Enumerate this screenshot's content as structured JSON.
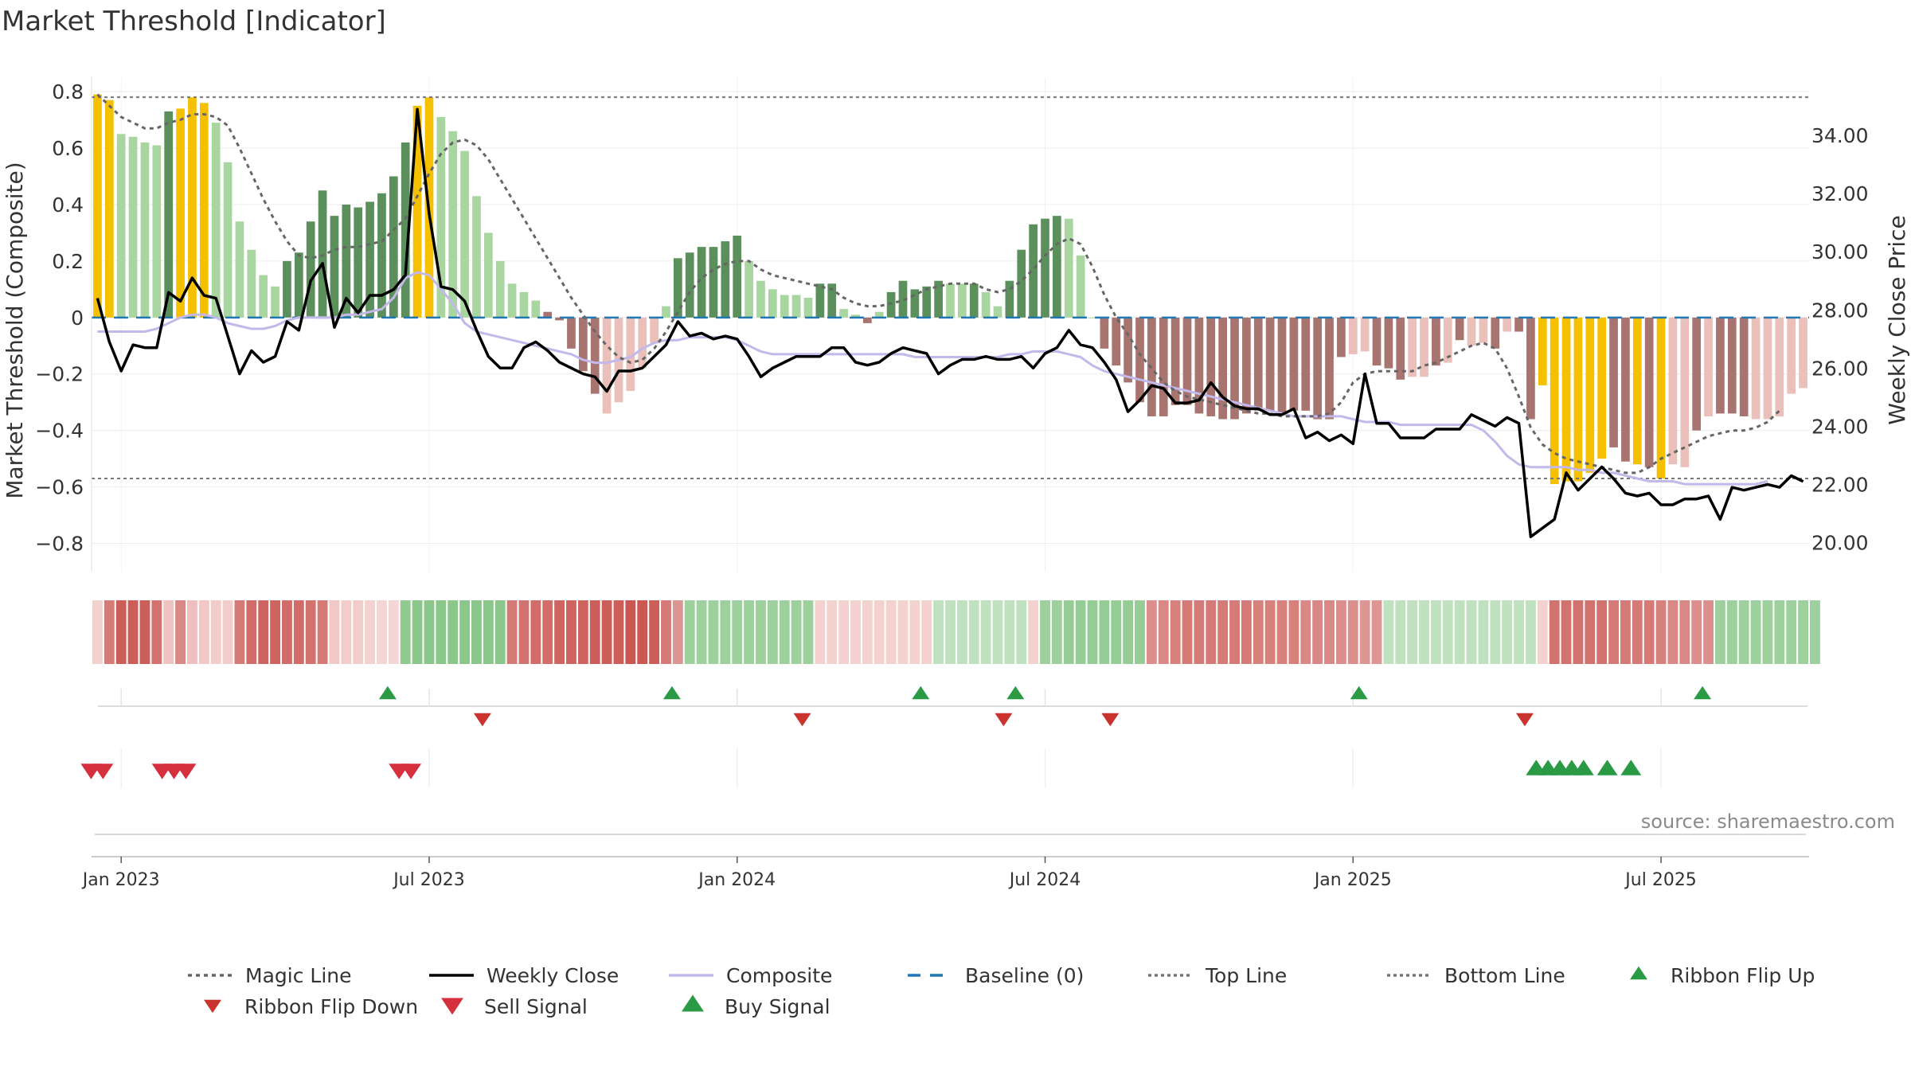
{
  "title": "Market Threshold [Indicator]",
  "source_note": "source: sharemaestro.com",
  "colors": {
    "strong_pos": "#5b8f5b",
    "weak_pos": "#a9d6a0",
    "extreme": "#f5c000",
    "strong_neg": "#a87470",
    "weak_neg": "#ebbfba",
    "magic": "#666666",
    "close": "#000000",
    "composite": "#c3b8ea",
    "baseline": "#1f77b4",
    "threshold": "#777777",
    "buy": "#2a9a45",
    "sell": "#d62f3e"
  },
  "chart_data": {
    "type": "bar",
    "title": "Market Threshold [Indicator]",
    "ylabel": "Market Threshold (Composite)",
    "y2label": "Weekly Close Price",
    "ylim": [
      -0.9,
      0.82
    ],
    "y2lim": [
      19.0,
      35.7
    ],
    "yticks": [
      {
        "v": 0.8,
        "t": "0.8"
      },
      {
        "v": 0.6,
        "t": "0.6"
      },
      {
        "v": 0.4,
        "t": "0.4"
      },
      {
        "v": 0.2,
        "t": "0.2"
      },
      {
        "v": 0,
        "t": "0"
      },
      {
        "v": -0.2,
        "t": "−0.2"
      },
      {
        "v": -0.4,
        "t": "−0.4"
      },
      {
        "v": -0.6,
        "t": "−0.6"
      },
      {
        "v": -0.8,
        "t": "−0.8"
      }
    ],
    "y2ticks": [
      {
        "v": 34,
        "t": "34.00"
      },
      {
        "v": 32,
        "t": "32.00"
      },
      {
        "v": 30,
        "t": "30.00"
      },
      {
        "v": 28,
        "t": "28.00"
      },
      {
        "v": 26,
        "t": "26.00"
      },
      {
        "v": 24,
        "t": "24.00"
      },
      {
        "v": 22,
        "t": "22.00"
      },
      {
        "v": 20,
        "t": "20.00"
      }
    ],
    "xticks": [
      {
        "w": 2.5,
        "t": "Jan 2023"
      },
      {
        "w": 28.5,
        "t": "Jul 2023"
      },
      {
        "w": 54.5,
        "t": "Jan 2024"
      },
      {
        "w": 80.5,
        "t": "Jul 2024"
      },
      {
        "w": 106.5,
        "t": "Jan 2025"
      },
      {
        "w": 132.5,
        "t": "Jul 2025"
      }
    ],
    "top_line": 0.78,
    "bottom_line": -0.57,
    "baseline": 0,
    "composite_bars": [
      0.79,
      0.77,
      0.65,
      0.64,
      0.62,
      0.61,
      0.73,
      0.74,
      0.78,
      0.76,
      0.69,
      0.55,
      0.34,
      0.24,
      0.15,
      0.11,
      0.2,
      0.23,
      0.34,
      0.45,
      0.36,
      0.4,
      0.39,
      0.41,
      0.44,
      0.5,
      0.62,
      0.75,
      0.78,
      0.71,
      0.66,
      0.59,
      0.43,
      0.3,
      0.2,
      0.12,
      0.09,
      0.06,
      0.02,
      -0.01,
      -0.11,
      -0.19,
      -0.27,
      -0.34,
      -0.3,
      -0.26,
      -0.18,
      -0.09,
      0.04,
      0.21,
      0.23,
      0.25,
      0.25,
      0.27,
      0.29,
      0.2,
      0.13,
      0.1,
      0.08,
      0.08,
      0.07,
      0.12,
      0.12,
      0.03,
      0.01,
      -0.02,
      0.02,
      0.09,
      0.13,
      0.1,
      0.11,
      0.13,
      0.12,
      0.12,
      0.12,
      0.09,
      0.04,
      0.13,
      0.24,
      0.33,
      0.35,
      0.36,
      0.35,
      0.22,
      0.0,
      -0.11,
      -0.17,
      -0.23,
      -0.3,
      -0.35,
      -0.35,
      -0.31,
      -0.31,
      -0.34,
      -0.35,
      -0.36,
      -0.36,
      -0.34,
      -0.33,
      -0.33,
      -0.34,
      -0.33,
      -0.33,
      -0.36,
      -0.36,
      -0.14,
      -0.13,
      -0.12,
      -0.17,
      -0.18,
      -0.22,
      -0.21,
      -0.21,
      -0.17,
      -0.16,
      -0.08,
      -0.1,
      -0.09,
      -0.11,
      -0.05,
      -0.05,
      -0.36,
      -0.24,
      -0.59,
      -0.58,
      -0.58,
      -0.55,
      -0.5,
      -0.46,
      -0.51,
      -0.52,
      -0.53,
      -0.57,
      -0.52,
      -0.53,
      -0.4,
      -0.35,
      -0.34,
      -0.34,
      -0.35,
      -0.36,
      -0.36,
      -0.35,
      -0.27,
      -0.25
    ],
    "bar_colors": [
      "Y",
      "Y",
      "WP",
      "WP",
      "WP",
      "WP",
      "SP",
      "Y",
      "Y",
      "Y",
      "WP",
      "WP",
      "WP",
      "WP",
      "WP",
      "WP",
      "SP",
      "SP",
      "SP",
      "SP",
      "SP",
      "SP",
      "SP",
      "SP",
      "SP",
      "SP",
      "SP",
      "Y",
      "Y",
      "WP",
      "WP",
      "WP",
      "WP",
      "WP",
      "WP",
      "WP",
      "WP",
      "WP",
      "SN",
      "SN",
      "SN",
      "SN",
      "SN",
      "WN",
      "WN",
      "WN",
      "WN",
      "WN",
      "WP",
      "SP",
      "SP",
      "SP",
      "SP",
      "SP",
      "SP",
      "WP",
      "WP",
      "WP",
      "WP",
      "WP",
      "WP",
      "SP",
      "SP",
      "WP",
      "WP",
      "SN",
      "WP",
      "SP",
      "SP",
      "SP",
      "SP",
      "SP",
      "WP",
      "WP",
      "SP",
      "WP",
      "WP",
      "SP",
      "SP",
      "SP",
      "SP",
      "SP",
      "WP",
      "WP",
      "WP",
      "SN",
      "SN",
      "SN",
      "SN",
      "SN",
      "SN",
      "SN",
      "SN",
      "SN",
      "SN",
      "SN",
      "SN",
      "SN",
      "SN",
      "SN",
      "SN",
      "SN",
      "SN",
      "SN",
      "SN",
      "SN",
      "WN",
      "WN",
      "SN",
      "SN",
      "SN",
      "WN",
      "WN",
      "SN",
      "WN",
      "SN",
      "WN",
      "WN",
      "SN",
      "WN",
      "SN",
      "SN",
      "Y",
      "Y",
      "Y",
      "Y",
      "Y",
      "Y",
      "SN",
      "SN",
      "Y",
      "SN",
      "Y",
      "WN",
      "WN",
      "SN",
      "WN",
      "SN",
      "SN",
      "SN",
      "WN",
      "WN",
      "WN",
      "WN",
      "WN",
      "WN"
    ],
    "series": [
      {
        "name": "Magic Line",
        "axis": "left",
        "values": [
          0.79,
          0.75,
          0.71,
          0.69,
          0.67,
          0.67,
          0.69,
          0.7,
          0.72,
          0.72,
          0.71,
          0.68,
          0.6,
          0.51,
          0.42,
          0.34,
          0.27,
          0.22,
          0.21,
          0.22,
          0.24,
          0.25,
          0.25,
          0.26,
          0.27,
          0.31,
          0.35,
          0.43,
          0.51,
          0.58,
          0.62,
          0.63,
          0.61,
          0.56,
          0.49,
          0.42,
          0.35,
          0.28,
          0.21,
          0.14,
          0.07,
          0.01,
          -0.05,
          -0.1,
          -0.14,
          -0.16,
          -0.15,
          -0.11,
          -0.05,
          0.02,
          0.09,
          0.14,
          0.17,
          0.19,
          0.2,
          0.2,
          0.17,
          0.15,
          0.14,
          0.13,
          0.12,
          0.11,
          0.1,
          0.07,
          0.05,
          0.04,
          0.04,
          0.05,
          0.06,
          0.08,
          0.1,
          0.11,
          0.12,
          0.12,
          0.12,
          0.1,
          0.09,
          0.1,
          0.13,
          0.17,
          0.22,
          0.26,
          0.28,
          0.26,
          0.18,
          0.08,
          0.0,
          -0.06,
          -0.13,
          -0.18,
          -0.23,
          -0.26,
          -0.28,
          -0.29,
          -0.3,
          -0.31,
          -0.32,
          -0.33,
          -0.34,
          -0.34,
          -0.35,
          -0.35,
          -0.35,
          -0.35,
          -0.34,
          -0.3,
          -0.23,
          -0.2,
          -0.19,
          -0.19,
          -0.19,
          -0.19,
          -0.17,
          -0.16,
          -0.14,
          -0.12,
          -0.1,
          -0.09,
          -0.11,
          -0.18,
          -0.28,
          -0.39,
          -0.45,
          -0.48,
          -0.5,
          -0.51,
          -0.52,
          -0.53,
          -0.54,
          -0.55,
          -0.55,
          -0.53,
          -0.5,
          -0.48,
          -0.46,
          -0.44,
          -0.42,
          -0.41,
          -0.4,
          -0.4,
          -0.39,
          -0.37,
          -0.33
        ]
      },
      {
        "name": "Weekly Close",
        "axis": "right",
        "values": [
          28.4,
          26.9,
          25.9,
          26.8,
          26.7,
          26.7,
          28.6,
          28.3,
          29.1,
          28.5,
          28.4,
          27.1,
          25.8,
          26.6,
          26.2,
          26.4,
          27.6,
          27.3,
          29.0,
          29.6,
          27.4,
          28.4,
          27.9,
          28.5,
          28.5,
          28.7,
          29.2,
          34.9,
          31.3,
          28.8,
          28.7,
          28.3,
          27.3,
          26.4,
          26.0,
          26.0,
          26.7,
          26.9,
          26.6,
          26.2,
          26.0,
          25.8,
          25.7,
          25.2,
          25.9,
          25.9,
          26.0,
          26.4,
          26.8,
          27.6,
          27.1,
          27.2,
          27.0,
          27.1,
          27.0,
          26.4,
          25.7,
          26.0,
          26.2,
          26.4,
          26.4,
          26.4,
          26.7,
          26.7,
          26.2,
          26.1,
          26.2,
          26.5,
          26.7,
          26.6,
          26.5,
          25.8,
          26.1,
          26.3,
          26.3,
          26.4,
          26.3,
          26.3,
          26.4,
          26.0,
          26.5,
          26.7,
          27.3,
          26.8,
          26.7,
          26.2,
          25.6,
          24.5,
          24.9,
          25.4,
          25.3,
          24.8,
          24.8,
          24.9,
          25.5,
          25.0,
          24.7,
          24.6,
          24.6,
          24.4,
          24.4,
          24.6,
          23.6,
          23.8,
          23.5,
          23.7,
          23.4,
          25.8,
          24.1,
          24.1,
          23.6,
          23.6,
          23.6,
          23.9,
          23.9,
          23.9,
          24.4,
          24.2,
          24.0,
          24.3,
          24.1,
          20.2,
          20.5,
          20.8,
          22.4,
          21.8,
          22.2,
          22.6,
          22.2,
          21.7,
          21.6,
          21.7,
          21.3,
          21.3,
          21.5,
          21.5,
          21.6,
          20.8,
          21.9,
          21.8,
          21.9,
          22.0,
          21.9,
          22.3,
          22.1
        ]
      },
      {
        "name": "Composite",
        "axis": "left",
        "values": [
          -0.05,
          -0.05,
          -0.05,
          -0.05,
          -0.05,
          -0.04,
          -0.02,
          0.0,
          0.01,
          0.01,
          0.0,
          -0.02,
          -0.03,
          -0.04,
          -0.04,
          -0.03,
          -0.01,
          0.0,
          0.0,
          0.0,
          0.0,
          0.01,
          0.01,
          0.02,
          0.03,
          0.07,
          0.14,
          0.16,
          0.15,
          0.1,
          0.05,
          -0.02,
          -0.05,
          -0.06,
          -0.07,
          -0.08,
          -0.09,
          -0.1,
          -0.11,
          -0.12,
          -0.13,
          -0.15,
          -0.16,
          -0.16,
          -0.15,
          -0.14,
          -0.11,
          -0.09,
          -0.08,
          -0.08,
          -0.07,
          -0.07,
          -0.07,
          -0.07,
          -0.08,
          -0.1,
          -0.12,
          -0.13,
          -0.13,
          -0.13,
          -0.13,
          -0.13,
          -0.13,
          -0.13,
          -0.13,
          -0.13,
          -0.13,
          -0.13,
          -0.13,
          -0.14,
          -0.14,
          -0.14,
          -0.14,
          -0.14,
          -0.14,
          -0.14,
          -0.14,
          -0.13,
          -0.13,
          -0.12,
          -0.12,
          -0.12,
          -0.13,
          -0.14,
          -0.17,
          -0.19,
          -0.2,
          -0.21,
          -0.22,
          -0.23,
          -0.24,
          -0.25,
          -0.26,
          -0.27,
          -0.28,
          -0.29,
          -0.3,
          -0.31,
          -0.32,
          -0.33,
          -0.34,
          -0.35,
          -0.35,
          -0.35,
          -0.35,
          -0.35,
          -0.36,
          -0.37,
          -0.37,
          -0.37,
          -0.38,
          -0.38,
          -0.38,
          -0.38,
          -0.38,
          -0.38,
          -0.38,
          -0.4,
          -0.44,
          -0.49,
          -0.52,
          -0.53,
          -0.53,
          -0.53,
          -0.53,
          -0.54,
          -0.54,
          -0.55,
          -0.55,
          -0.56,
          -0.57,
          -0.58,
          -0.58,
          -0.58,
          -0.59,
          -0.59,
          -0.59,
          -0.59,
          -0.59,
          -0.59,
          -0.59,
          -0.58
        ]
      },
      {
        "name": "Baseline (0)",
        "axis": "left",
        "values": [
          0
        ]
      },
      {
        "name": "Top Line",
        "axis": "left",
        "values": [
          0.78
        ]
      },
      {
        "name": "Bottom Line",
        "axis": "left",
        "values": [
          -0.57
        ]
      }
    ],
    "ribbon": [
      "pb",
      "r",
      "r",
      "r",
      "r",
      "r",
      "pb",
      "r",
      "pb",
      "pb",
      "pb",
      "pb",
      "r",
      "r",
      "r",
      "r",
      "r",
      "r",
      "r",
      "r",
      "pb",
      "pb",
      "pb",
      "pb",
      "pb",
      "pb",
      "g",
      "g",
      "g",
      "g",
      "g",
      "g",
      "g",
      "g",
      "g",
      "r",
      "r",
      "r",
      "r",
      "r",
      "r",
      "r",
      "r",
      "r",
      "r",
      "r",
      "r",
      "r",
      "r",
      "r",
      "g",
      "g",
      "g",
      "g",
      "g",
      "g",
      "g",
      "g",
      "g",
      "g",
      "g",
      "pb",
      "pb",
      "pb",
      "pb",
      "pb",
      "pb",
      "pb",
      "pb",
      "pb",
      "pb",
      "pg",
      "pg",
      "pg",
      "pg",
      "pg",
      "pg",
      "pg",
      "pg",
      "pb",
      "g",
      "g",
      "g",
      "g",
      "g",
      "g",
      "g",
      "g",
      "g",
      "r",
      "r",
      "r",
      "r",
      "r",
      "r",
      "r",
      "r",
      "r",
      "r",
      "r",
      "r",
      "r",
      "r",
      "r",
      "r",
      "r",
      "r",
      "r",
      "r",
      "pg",
      "pg",
      "pg",
      "pg",
      "pg",
      "pg",
      "pg",
      "pg",
      "pg",
      "pg",
      "pg",
      "pg",
      "pg",
      "pb",
      "r",
      "r",
      "r",
      "r",
      "r",
      "r",
      "r",
      "r",
      "r",
      "r",
      "r",
      "r",
      "r",
      "r",
      "g",
      "g",
      "g",
      "g",
      "g",
      "g",
      "g",
      "g",
      "g"
    ],
    "ribbon_strength": [
      0.25,
      0.7,
      0.9,
      0.9,
      0.9,
      0.75,
      0.4,
      0.6,
      0.45,
      0.35,
      0.3,
      0.3,
      0.7,
      0.8,
      0.85,
      0.85,
      0.8,
      0.8,
      0.75,
      0.7,
      0.35,
      0.3,
      0.3,
      0.25,
      0.2,
      0.2,
      0.7,
      0.75,
      0.75,
      0.75,
      0.75,
      0.75,
      0.75,
      0.75,
      0.75,
      0.7,
      0.75,
      0.8,
      0.8,
      0.85,
      0.85,
      0.85,
      0.9,
      0.9,
      0.9,
      0.95,
      0.95,
      0.9,
      0.7,
      0.5,
      0.6,
      0.6,
      0.6,
      0.6,
      0.6,
      0.6,
      0.6,
      0.6,
      0.6,
      0.6,
      0.6,
      0.25,
      0.25,
      0.25,
      0.25,
      0.25,
      0.25,
      0.25,
      0.25,
      0.25,
      0.25,
      0.5,
      0.5,
      0.5,
      0.5,
      0.5,
      0.5,
      0.5,
      0.5,
      0.25,
      0.6,
      0.6,
      0.65,
      0.65,
      0.65,
      0.65,
      0.65,
      0.65,
      0.65,
      0.55,
      0.6,
      0.65,
      0.7,
      0.7,
      0.7,
      0.7,
      0.7,
      0.7,
      0.65,
      0.65,
      0.65,
      0.65,
      0.6,
      0.6,
      0.6,
      0.55,
      0.55,
      0.5,
      0.5,
      0.5,
      0.5,
      0.5,
      0.5,
      0.5,
      0.5,
      0.5,
      0.5,
      0.5,
      0.5,
      0.5,
      0.5,
      0.5,
      0.25,
      0.75,
      0.75,
      0.75,
      0.75,
      0.75,
      0.7,
      0.7,
      0.7,
      0.7,
      0.65,
      0.6,
      0.6,
      0.55,
      0.55,
      0.6,
      0.6,
      0.6,
      0.6,
      0.6,
      0.6,
      0.6,
      0.6,
      0.6
    ],
    "ribbon_flip_up": [
      25,
      49,
      70,
      78,
      107,
      136
    ],
    "ribbon_flip_down": [
      33,
      60,
      77,
      86,
      121
    ],
    "buy_signals": [
      122.5,
      123.5,
      124.5,
      125.5,
      126.5,
      128.5,
      130.5
    ],
    "sell_signals": [
      0.5,
      1.5,
      6.5,
      7.5,
      8.5,
      26.5,
      27.5
    ],
    "legend": [
      "Magic Line",
      "Weekly Close",
      "Composite",
      "Baseline (0)",
      "Top Line",
      "Bottom Line",
      "Ribbon Flip Up",
      "Ribbon Flip Down",
      "Sell Signal",
      "Buy Signal"
    ]
  }
}
